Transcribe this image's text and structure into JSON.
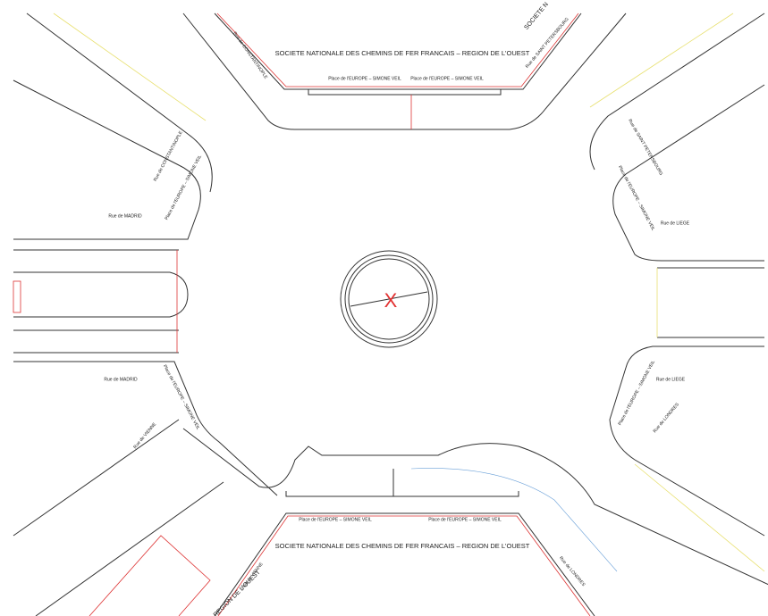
{
  "marker": "X",
  "labels": [
    "SOCIETE NATIONALE DES CHEMINS DE FER FRANCAIS – REGION DE L'OUEST",
    "SOCIETE NATIONALE DES CHEMINS DE FER FRANCAIS – REGION DE L'OUEST",
    "Place de l'EUROPE – SIMONE VEIL",
    "Place de l'EUROPE – SIMONE VEIL",
    "Place de l'EUROPE – SIMONE VEIL",
    "Place de l'EUROPE – SIMONE VEIL",
    "Rue de CONSTANTINOPLE",
    "Rue de CONSTANTINOPLE",
    "Place de l'EUROPE – SIMONE VEIL",
    "Rue de MADRID",
    "Rue de MADRID",
    "Place de l'EUROPE – SIMONE VEIL",
    "Rue de VIENNE",
    "Rue de VIENNE",
    "REGION DE L'OUEST",
    "SOCIETE N",
    "Rue de SAINT PETERSBOURG",
    "Rue de SAINT PETERSBOURG",
    "Place de l'EUROPE – SIMONE VEIL",
    "Rue de LIEGE",
    "Rue de LIEGE",
    "Place de l'EUROPE – SIMONE VEIL",
    "Rue de LONDRES",
    "Rue de LONDRES"
  ]
}
